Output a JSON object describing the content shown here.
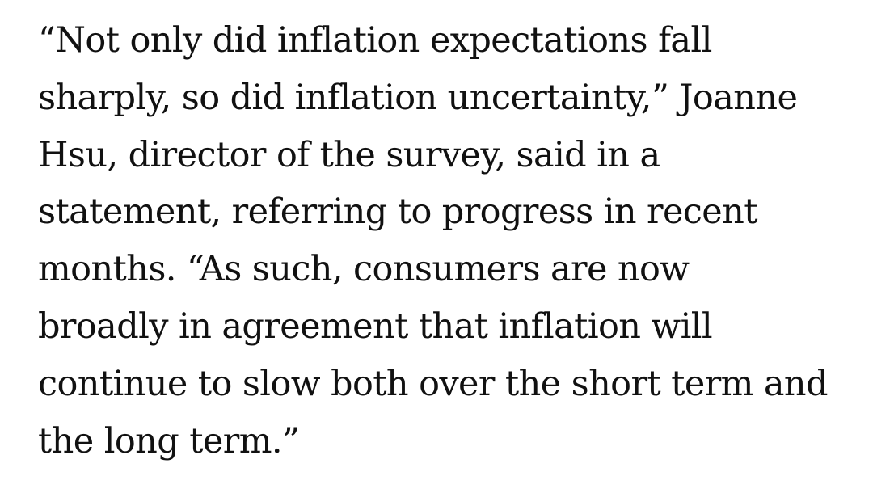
{
  "article": {
    "paragraph_lines": [
      "“Not only did inflation expectations fall",
      "sharply, so did inflation uncertainty,” Joanne",
      "Hsu, director of the survey, said in a",
      "statement, referring to progress in recent",
      "months. “As such, consumers are now",
      "broadly in agreement that inflation will",
      "continue to slow both over the short term and",
      "the long term.”"
    ]
  }
}
